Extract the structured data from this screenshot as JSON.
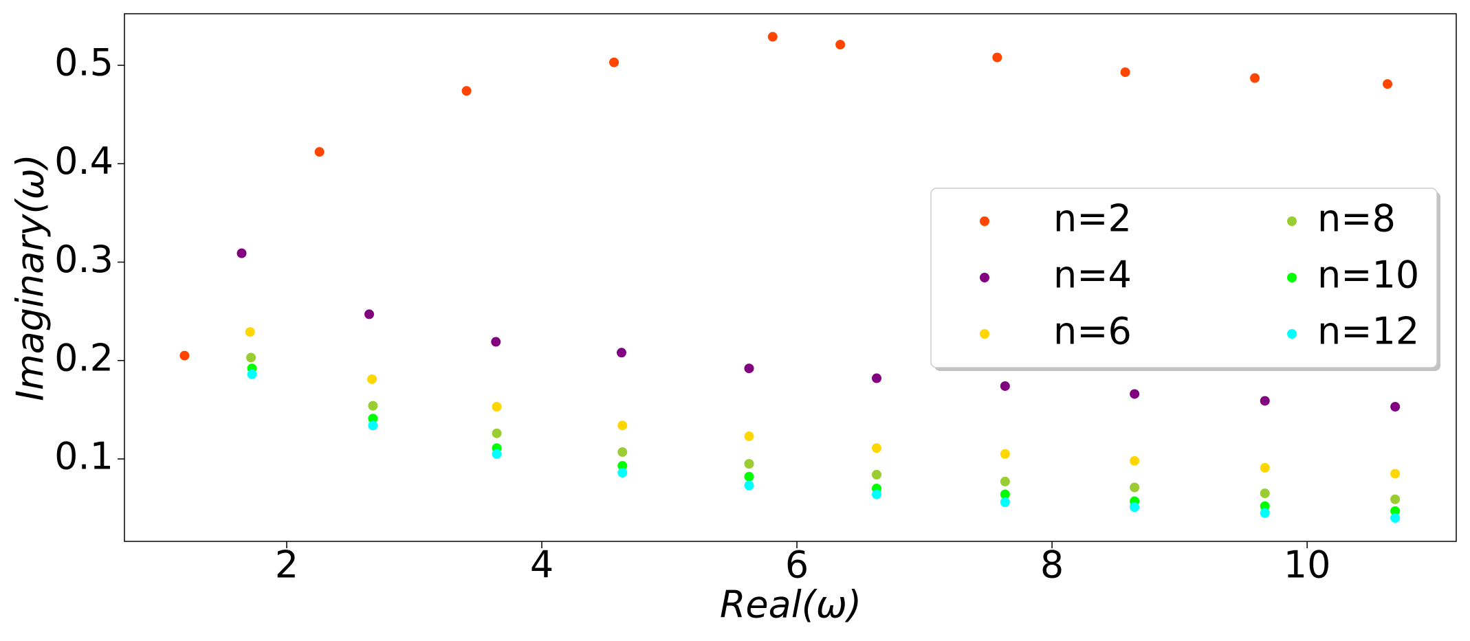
{
  "chart_data": {
    "type": "scatter",
    "x_label": "Real(ω)",
    "y_label": "Imaginary(ω)",
    "xlim": [
      0.728,
      11.169
    ],
    "ylim": [
      0.0162,
      0.5524
    ],
    "xticks": [
      2,
      4,
      6,
      8,
      10
    ],
    "yticks": [
      0.1,
      0.2,
      0.3,
      0.4,
      0.5
    ],
    "legend": "center right",
    "legend_columns": 2,
    "series": [
      {
        "name": "n=2",
        "color": "#ff4500",
        "x": [
          1.199,
          2.257,
          3.41,
          4.566,
          5.81,
          6.34,
          7.57,
          8.574,
          9.59,
          10.63
        ],
        "values": [
          0.205,
          0.412,
          0.474,
          0.503,
          0.529,
          0.521,
          0.508,
          0.493,
          0.487,
          0.481
        ]
      },
      {
        "name": "n=4",
        "color": "#800080",
        "x": [
          1.647,
          2.647,
          3.64,
          4.625,
          5.625,
          6.625,
          7.632,
          8.647,
          9.669,
          10.69
        ],
        "values": [
          0.309,
          0.247,
          0.219,
          0.208,
          0.192,
          0.182,
          0.174,
          0.166,
          0.159,
          0.153
        ]
      },
      {
        "name": "n=6",
        "color": "#ffd700",
        "x": [
          1.713,
          2.669,
          3.647,
          4.632,
          5.625,
          6.625,
          7.632,
          8.647,
          9.669,
          10.69
        ],
        "values": [
          0.229,
          0.181,
          0.153,
          0.134,
          0.123,
          0.111,
          0.105,
          0.098,
          0.091,
          0.085
        ]
      },
      {
        "name": "n=8",
        "color": "#9acd32",
        "x": [
          1.72,
          2.676,
          3.647,
          4.632,
          5.625,
          6.625,
          7.632,
          8.647,
          9.669,
          10.69
        ],
        "values": [
          0.203,
          0.154,
          0.126,
          0.107,
          0.095,
          0.084,
          0.077,
          0.071,
          0.065,
          0.059
        ]
      },
      {
        "name": "n=10",
        "color": "#00ff00",
        "x": [
          1.728,
          2.676,
          3.647,
          4.632,
          5.625,
          6.625,
          7.632,
          8.647,
          9.669,
          10.69
        ],
        "values": [
          0.192,
          0.141,
          0.111,
          0.093,
          0.082,
          0.07,
          0.064,
          0.057,
          0.052,
          0.047
        ]
      },
      {
        "name": "n=12",
        "color": "#00ffff",
        "x": [
          1.728,
          2.676,
          3.647,
          4.632,
          5.625,
          6.625,
          7.632,
          8.647,
          9.669,
          10.69
        ],
        "values": [
          0.186,
          0.134,
          0.105,
          0.086,
          0.073,
          0.064,
          0.056,
          0.051,
          0.045,
          0.04
        ]
      }
    ]
  }
}
